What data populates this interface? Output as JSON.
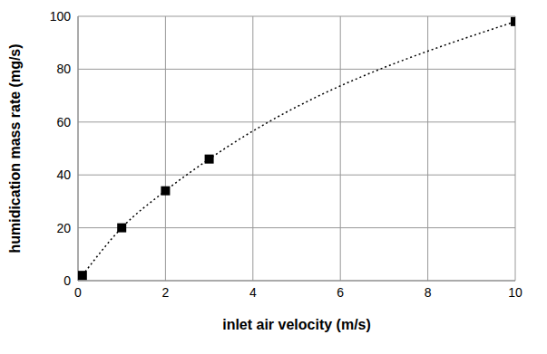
{
  "chart_data": {
    "type": "line",
    "x_label": "inlet air velocity (m/s)",
    "y_label": "humidication mass rate (mg/s)",
    "x": [
      0.1,
      1,
      2,
      3,
      10
    ],
    "values": [
      2,
      20,
      34,
      46,
      98
    ],
    "color": "#000000",
    "marker": "square",
    "line_style": "dotted",
    "xlim": [
      0,
      10
    ],
    "xticks": [
      0,
      2,
      4,
      6,
      8,
      10
    ],
    "ylim": [
      0,
      100
    ],
    "yticks": [
      0,
      20,
      40,
      60,
      80,
      100
    ],
    "grid": true
  }
}
